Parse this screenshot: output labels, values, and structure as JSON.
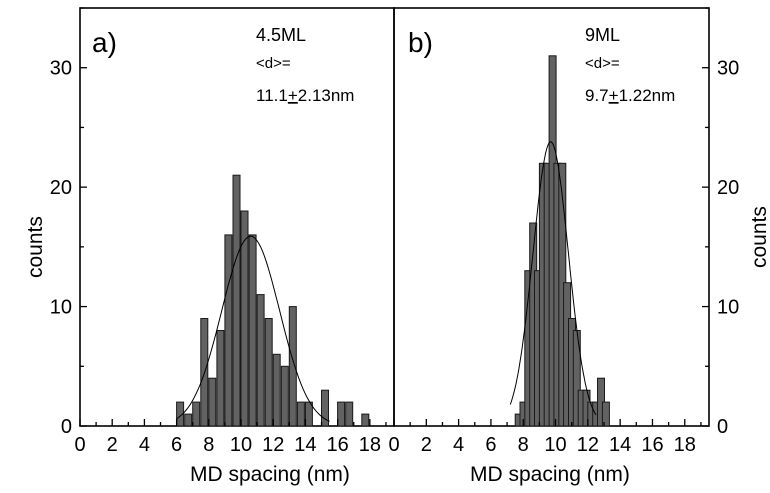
{
  "chart_data": [
    {
      "type": "bar",
      "panel_label": "a)",
      "annotation": {
        "line1": "4.5ML",
        "line2": "<d>=",
        "mean": "11.1",
        "pm": "+",
        "sd": "2.13nm"
      },
      "xlabel": "MD spacing (nm)",
      "ylabel": "counts",
      "yaxis_side": "left",
      "xlim": [
        0,
        19.5
      ],
      "ylim": [
        0,
        35
      ],
      "xticks": [
        0,
        2,
        4,
        6,
        8,
        10,
        12,
        14,
        16,
        18
      ],
      "yticks": [
        0,
        10,
        20,
        30
      ],
      "bin_width": 0.5,
      "bins": [
        {
          "x": 6.0,
          "y": 2
        },
        {
          "x": 6.5,
          "y": 1
        },
        {
          "x": 7.0,
          "y": 2
        },
        {
          "x": 7.5,
          "y": 9
        },
        {
          "x": 8.0,
          "y": 4
        },
        {
          "x": 8.5,
          "y": 8
        },
        {
          "x": 9.0,
          "y": 16
        },
        {
          "x": 9.5,
          "y": 21
        },
        {
          "x": 10.0,
          "y": 18
        },
        {
          "x": 10.5,
          "y": 16
        },
        {
          "x": 11.0,
          "y": 11
        },
        {
          "x": 11.5,
          "y": 9
        },
        {
          "x": 12.0,
          "y": 6
        },
        {
          "x": 12.5,
          "y": 5
        },
        {
          "x": 13.0,
          "y": 10
        },
        {
          "x": 13.5,
          "y": 2
        },
        {
          "x": 14.0,
          "y": 2
        },
        {
          "x": 15.0,
          "y": 3
        },
        {
          "x": 16.0,
          "y": 2
        },
        {
          "x": 16.5,
          "y": 2
        },
        {
          "x": 17.5,
          "y": 1
        }
      ],
      "fit_curve": {
        "type": "gaussian",
        "center": 10.6,
        "sigma": 1.8,
        "peak": 15.9,
        "x_range": [
          6.0,
          15.5
        ]
      }
    },
    {
      "type": "bar",
      "panel_label": "b)",
      "annotation": {
        "line1": "9ML",
        "line2": "<d>=",
        "mean": "9.7",
        "pm": "+",
        "sd": "1.22nm"
      },
      "xlabel": "MD spacing (nm)",
      "ylabel": "counts",
      "yaxis_side": "right",
      "xlim": [
        0,
        19.5
      ],
      "ylim": [
        0,
        35
      ],
      "xticks": [
        0,
        2,
        4,
        6,
        8,
        10,
        12,
        14,
        16,
        18
      ],
      "yticks": [
        0,
        10,
        20,
        30
      ],
      "bin_width": 0.5,
      "bins": [
        {
          "x": 7.5,
          "y": 1
        },
        {
          "x": 7.8,
          "y": 2
        },
        {
          "x": 8.1,
          "y": 13
        },
        {
          "x": 8.4,
          "y": 17
        },
        {
          "x": 8.7,
          "y": 13
        },
        {
          "x": 9.0,
          "y": 22
        },
        {
          "x": 9.3,
          "y": 22
        },
        {
          "x": 9.6,
          "y": 31
        },
        {
          "x": 9.9,
          "y": 22
        },
        {
          "x": 10.2,
          "y": 22
        },
        {
          "x": 10.5,
          "y": 12
        },
        {
          "x": 10.8,
          "y": 9
        },
        {
          "x": 11.1,
          "y": 8
        },
        {
          "x": 11.4,
          "y": 3
        },
        {
          "x": 11.7,
          "y": 3
        },
        {
          "x": 12.0,
          "y": 2
        },
        {
          "x": 12.3,
          "y": 2
        },
        {
          "x": 12.6,
          "y": 4
        },
        {
          "x": 12.9,
          "y": 2
        }
      ],
      "fit_curve": {
        "type": "gaussian",
        "center": 9.7,
        "sigma": 1.1,
        "peak": 23.8,
        "x_range": [
          7.2,
          12.5
        ]
      }
    }
  ]
}
